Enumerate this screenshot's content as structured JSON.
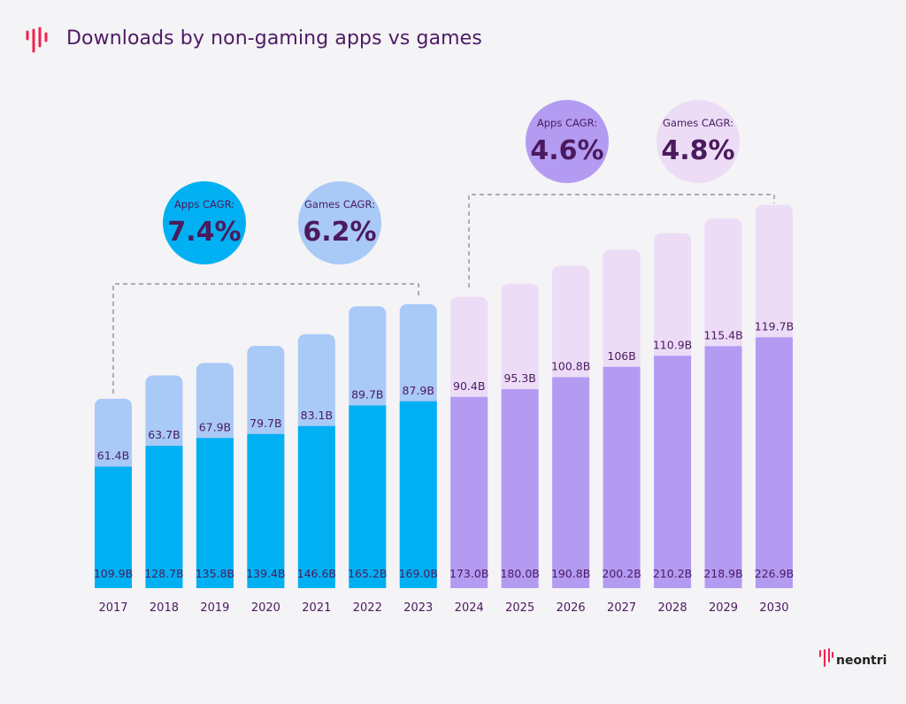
{
  "title": "Downloads by non-gaming apps vs games",
  "brand": "neontri",
  "colors": {
    "apps_historic": "#00b0f2",
    "games_historic": "#a9c9f7",
    "apps_forecast": "#b39bf2",
    "games_forecast": "#ecdcf6",
    "text": "#4b1a5e",
    "logo": "#f0224f"
  },
  "cagr": {
    "historic_apps": {
      "label": "Apps CAGR:",
      "value": "7.4%"
    },
    "historic_games": {
      "label": "Games CAGR:",
      "value": "6.2%"
    },
    "forecast_apps": {
      "label": "Apps CAGR:",
      "value": "4.6%"
    },
    "forecast_games": {
      "label": "Games CAGR:",
      "value": "4.8%"
    }
  },
  "chart_data": {
    "type": "bar",
    "stacked": true,
    "title": "Downloads by non-gaming apps vs games",
    "categories": [
      "2017",
      "2018",
      "2019",
      "2020",
      "2021",
      "2022",
      "2023",
      "2024",
      "2025",
      "2026",
      "2027",
      "2028",
      "2029",
      "2030"
    ],
    "series": [
      {
        "values": [
          109.9,
          128.7,
          135.8,
          139.4,
          146.6,
          165.2,
          169.0,
          173.0,
          180.0,
          190.8,
          200.2,
          210.2,
          218.9,
          226.9
        ],
        "labels": [
          "109.9B",
          "128.7B",
          "135.8B",
          "139.4B",
          "146.6B",
          "165.2B",
          "169.0B",
          "173.0B",
          "180.0B",
          "190.8B",
          "200.2B",
          "210.2B",
          "218.9B",
          "226.9B"
        ]
      },
      {
        "values": [
          61.4,
          63.7,
          67.9,
          79.7,
          83.1,
          89.7,
          87.9,
          90.4,
          95.3,
          100.8,
          106,
          110.9,
          115.4,
          119.7
        ],
        "labels": [
          "61.4B",
          "63.7B",
          "67.9B",
          "79.7B",
          "83.1B",
          "89.7B",
          "87.9B",
          "90.4B",
          "95.3B",
          "100.8B",
          "106B",
          "110.9B",
          "115.4B",
          "119.7B"
        ]
      }
    ],
    "forecast_from": "2024",
    "grid": false,
    "legend": "none",
    "unit": "B"
  }
}
